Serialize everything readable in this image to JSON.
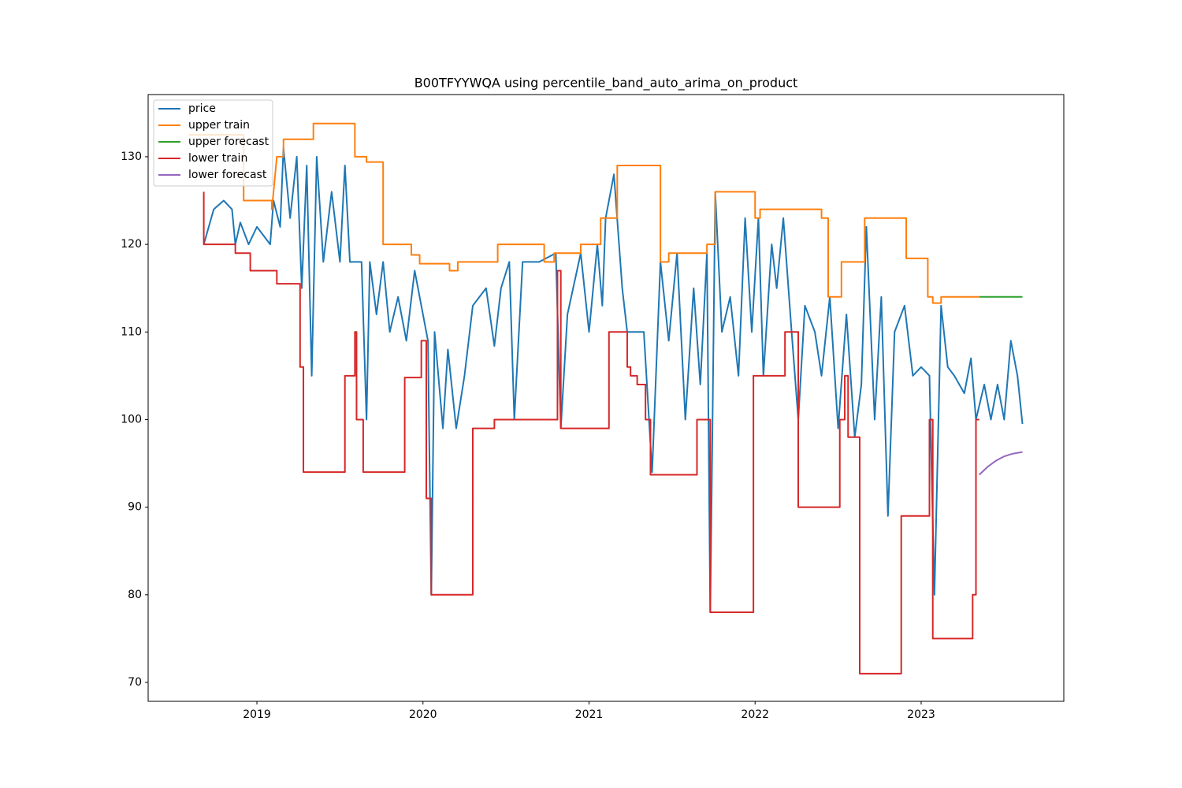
{
  "chart_data": {
    "type": "line",
    "title": "B00TFYYWQA using percentile_band_auto_arima_on_product",
    "xlim": [
      2018.345,
      2023.859
    ],
    "xticks": [
      2019,
      2020,
      2021,
      2022,
      2023
    ],
    "ylim": [
      67.84,
      137.1
    ],
    "yticks": [
      70,
      80,
      90,
      100,
      110,
      120,
      130
    ],
    "grid": false,
    "legend": "upper left",
    "series": [
      {
        "name": "price",
        "color": "#1f77b4",
        "x": [
          2018.68,
          2018.74,
          2018.8,
          2018.85,
          2018.87,
          2018.9,
          2018.95,
          2019.0,
          2019.08,
          2019.1,
          2019.14,
          2019.16,
          2019.2,
          2019.24,
          2019.27,
          2019.3,
          2019.33,
          2019.36,
          2019.4,
          2019.45,
          2019.5,
          2019.53,
          2019.56,
          2019.63,
          2019.66,
          2019.68,
          2019.72,
          2019.76,
          2019.8,
          2019.85,
          2019.9,
          2019.95,
          2020.0,
          2020.03,
          2020.05,
          2020.07,
          2020.12,
          2020.15,
          2020.2,
          2020.25,
          2020.3,
          2020.38,
          2020.43,
          2020.47,
          2020.52,
          2020.55,
          2020.6,
          2020.7,
          2020.8,
          2020.83,
          2020.87,
          2020.95,
          2021.0,
          2021.05,
          2021.08,
          2021.1,
          2021.15,
          2021.2,
          2021.23,
          2021.33,
          2021.38,
          2021.43,
          2021.48,
          2021.53,
          2021.58,
          2021.63,
          2021.67,
          2021.71,
          2021.73,
          2021.76,
          2021.8,
          2021.85,
          2021.9,
          2021.94,
          2021.98,
          2022.02,
          2022.05,
          2022.1,
          2022.13,
          2022.17,
          2022.22,
          2022.26,
          2022.3,
          2022.36,
          2022.4,
          2022.45,
          2022.5,
          2022.55,
          2022.6,
          2022.64,
          2022.67,
          2022.72,
          2022.76,
          2022.8,
          2022.84,
          2022.9,
          2022.95,
          2023.0,
          2023.05,
          2023.08,
          2023.12,
          2023.16,
          2023.2,
          2023.26,
          2023.3,
          2023.33,
          2023.38,
          2023.42,
          2023.46,
          2023.5,
          2023.54,
          2023.58,
          2023.61
        ],
        "values": [
          120,
          124,
          125,
          124,
          120,
          122.5,
          120,
          122,
          120,
          125,
          122,
          131,
          123,
          130,
          115,
          129,
          105,
          130,
          118,
          126,
          118,
          129,
          118,
          118,
          100,
          118,
          112,
          118,
          110,
          114,
          109,
          117,
          112,
          109,
          80,
          110,
          99,
          108,
          99,
          105,
          113,
          115,
          108.4,
          115,
          118,
          100,
          118,
          118,
          119,
          99,
          112,
          119,
          110,
          120,
          113,
          123,
          128,
          115,
          110,
          110,
          94,
          118,
          109,
          119,
          100,
          115,
          104,
          119,
          78,
          126,
          110,
          114,
          105,
          123,
          110,
          123,
          105,
          120,
          115,
          123,
          110,
          100,
          113,
          110,
          105,
          114,
          99,
          112,
          98,
          104,
          122,
          100,
          114,
          89,
          110,
          113,
          105,
          106,
          105,
          80,
          113,
          106,
          105,
          103,
          107,
          100,
          104,
          100,
          104,
          100,
          109,
          105,
          99.5
        ]
      },
      {
        "name": "upper train",
        "color": "#ff7f0e",
        "x": [
          2018.59,
          2018.92,
          2018.92,
          2019.09,
          2019.09,
          2019.12,
          2019.16,
          2019.16,
          2019.34,
          2019.34,
          2019.59,
          2019.59,
          2019.66,
          2019.66,
          2019.76,
          2019.76,
          2019.93,
          2019.93,
          2019.98,
          2019.98,
          2020.16,
          2020.16,
          2020.21,
          2020.21,
          2020.45,
          2020.45,
          2020.73,
          2020.73,
          2020.79,
          2020.79,
          2020.95,
          2020.95,
          2021.07,
          2021.07,
          2021.17,
          2021.17,
          2021.43,
          2021.43,
          2021.48,
          2021.48,
          2021.71,
          2021.71,
          2021.76,
          2021.76,
          2022.0,
          2022.0,
          2022.03,
          2022.03,
          2022.4,
          2022.4,
          2022.44,
          2022.44,
          2022.52,
          2022.52,
          2022.66,
          2022.66,
          2022.91,
          2022.91,
          2023.04,
          2023.04,
          2023.07,
          2023.07,
          2023.12,
          2023.12,
          2023.35
        ],
        "values": [
          132.5,
          132.5,
          125,
          125,
          124,
          130,
          130,
          132,
          132,
          133.8,
          133.8,
          130,
          130,
          129.4,
          129.4,
          120,
          120,
          118.8,
          118.8,
          117.8,
          117.8,
          117,
          117,
          118,
          118,
          120,
          120,
          118,
          118,
          119,
          119,
          120,
          120,
          123,
          123,
          129,
          129,
          118,
          118,
          119,
          119,
          120,
          120,
          126,
          126,
          123,
          123,
          124,
          124,
          123,
          123,
          114,
          114,
          118,
          118,
          123,
          123,
          118.4,
          118.4,
          114,
          114,
          113.3,
          113.3,
          114,
          114
        ]
      },
      {
        "name": "upper forecast",
        "color": "#2ca02c",
        "x": [
          2023.35,
          2023.61
        ],
        "values": [
          114,
          114
        ]
      },
      {
        "name": "lower train",
        "color": "#d62728",
        "x": [
          2018.68,
          2018.68,
          2018.87,
          2018.87,
          2018.96,
          2018.96,
          2019.12,
          2019.12,
          2019.26,
          2019.26,
          2019.28,
          2019.28,
          2019.53,
          2019.53,
          2019.59,
          2019.59,
          2019.6,
          2019.6,
          2019.64,
          2019.64,
          2019.89,
          2019.89,
          2019.99,
          2019.99,
          2020.02,
          2020.02,
          2020.05,
          2020.05,
          2020.3,
          2020.3,
          2020.43,
          2020.43,
          2020.81,
          2020.81,
          2020.83,
          2020.83,
          2021.12,
          2021.12,
          2021.23,
          2021.23,
          2021.25,
          2021.25,
          2021.29,
          2021.29,
          2021.34,
          2021.34,
          2021.37,
          2021.37,
          2021.65,
          2021.65,
          2021.73,
          2021.73,
          2021.99,
          2021.99,
          2022.18,
          2022.18,
          2022.26,
          2022.26,
          2022.51,
          2022.51,
          2022.54,
          2022.54,
          2022.56,
          2022.56,
          2022.63,
          2022.63,
          2022.88,
          2022.88,
          2023.05,
          2023.05,
          2023.07,
          2023.07,
          2023.31,
          2023.31,
          2023.33,
          2023.33,
          2023.35
        ],
        "values": [
          126,
          120,
          120,
          119,
          119,
          117,
          117,
          115.5,
          115.5,
          106,
          106,
          94,
          94,
          105,
          105,
          110,
          110,
          100,
          100,
          94,
          94,
          104.8,
          104.8,
          109,
          109,
          91,
          91,
          80,
          80,
          99,
          99,
          100,
          100,
          117,
          117,
          99,
          99,
          110,
          110,
          106,
          106,
          105,
          105,
          104,
          104,
          100,
          100,
          93.7,
          93.7,
          100,
          100,
          78,
          78,
          105,
          105,
          110,
          110,
          90,
          90,
          100,
          100,
          105,
          105,
          98,
          98,
          71,
          71,
          89,
          89,
          100,
          100,
          75,
          75,
          80,
          80,
          100,
          100
        ]
      },
      {
        "name": "lower forecast",
        "color": "#9467bd",
        "x": [
          2023.35,
          2023.4,
          2023.45,
          2023.5,
          2023.55,
          2023.61
        ],
        "values": [
          93.7,
          94.6,
          95.3,
          95.8,
          96.1,
          96.3
        ]
      }
    ]
  }
}
